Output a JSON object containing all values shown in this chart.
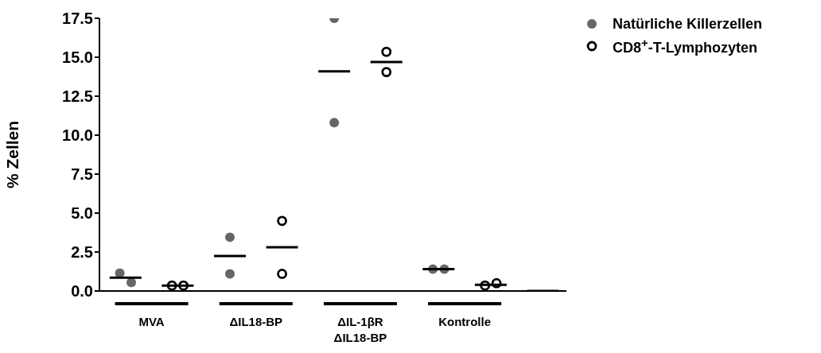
{
  "chart_data": {
    "type": "scatter",
    "ylabel": "% Zellen",
    "legend": "top right",
    "grid": false,
    "categories": [
      "MVA",
      "ΔIL18-BP",
      "ΔIL-1βR\nΔIL18-BP",
      "Kontrolle",
      null
    ],
    "ylim": [
      0,
      17.5
    ],
    "yticks": [
      {
        "value": 0,
        "label": "0.0"
      },
      {
        "value": 2.5,
        "label": "2.5"
      },
      {
        "value": 5,
        "label": "5.0"
      },
      {
        "value": 7.5,
        "label": "7.5"
      },
      {
        "value": 10,
        "label": "10.0"
      },
      {
        "value": 12.5,
        "label": "12.5"
      },
      {
        "value": 15,
        "label": "15.0"
      },
      {
        "value": 17.5,
        "label": "17.5"
      }
    ],
    "series": [
      {
        "name": "Natürliche Killerzellen",
        "type": "scatter",
        "marker": "circle",
        "color": "#666666",
        "x": [
          "MVA",
          "MVA",
          "ΔIL18-BP",
          "ΔIL18-BP",
          "ΔIL-1βR\nΔIL18-BP",
          "ΔIL-1βR\nΔIL18-BP",
          "Kontrolle",
          "Kontrolle"
        ],
        "values": [
          1.15,
          0.55,
          3.45,
          1.1,
          17.5,
          10.8,
          1.4,
          1.4
        ]
      },
      {
        "name": "CD8$^{+}$-T-Lymphozyten",
        "type": "scatter",
        "marker": "circle-open",
        "color": "#000000",
        "x": [
          "MVA",
          "MVA",
          "ΔIL18-BP",
          "ΔIL18-BP",
          "ΔIL-1βR\nΔIL18-BP",
          "ΔIL-1βR\nΔIL18-BP",
          "Kontrolle",
          "Kontrolle"
        ],
        "values": [
          0.35,
          0.35,
          4.5,
          1.1,
          15.35,
          14.05,
          0.35,
          0.5
        ]
      },
      {
        "type": "box",
        "color": "#000000",
        "boxes": [
          {
            "low": 0.85,
            "q1": 0.85,
            "median": 0.85,
            "q3": 0.85,
            "high": 0.85
          },
          {
            "low": 2.25,
            "q1": 2.25,
            "median": 2.25,
            "q3": 2.25,
            "high": 2.25
          },
          {
            "low": 14.1,
            "q1": 14.1,
            "median": 14.1,
            "q3": 14.1,
            "high": 14.1
          },
          {
            "low": 1.4,
            "q1": 1.4,
            "median": 1.4,
            "q3": 1.4,
            "high": 1.4
          },
          {
            "low": 0,
            "q1": 0,
            "median": 0,
            "q3": 0,
            "high": 0
          }
        ]
      },
      {
        "type": "box",
        "color": "#000000",
        "boxes": [
          {
            "low": 0.35,
            "q1": 0.35,
            "median": 0.35,
            "q3": 0.35,
            "high": 0.35
          },
          {
            "low": 2.8,
            "q1": 2.8,
            "median": 2.8,
            "q3": 2.8,
            "high": 2.8
          },
          {
            "low": 14.7,
            "q1": 14.7,
            "median": 14.7,
            "q3": 14.7,
            "high": 14.7
          },
          {
            "low": 0.4,
            "q1": 0.4,
            "median": 0.4,
            "q3": 0.4,
            "high": 0.4
          },
          null
        ]
      }
    ]
  }
}
